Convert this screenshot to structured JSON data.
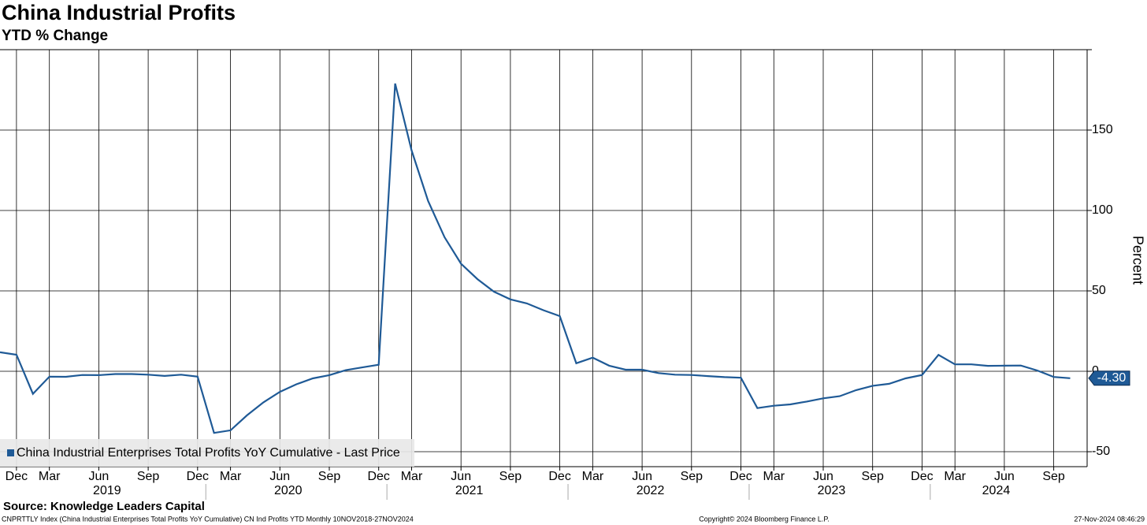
{
  "chart_data": {
    "type": "line",
    "title": "China Industrial Profits",
    "subtitle": "YTD % Change",
    "y_label": "Percent",
    "source": "Source: Knowledge Leaders Capital",
    "footer_left": "CNPRTTLY Index (China Industrial Enterprises Total Profits YoY Cumulative) CN Ind Profits YTD  Monthly 10NOV2018-27NOV2024",
    "footer_center": "Copyright© 2024 Bloomberg Finance L.P.",
    "footer_right": "27-Nov-2024 08:46:29",
    "categories": [
      null,
      "Dec",
      null,
      "Mar",
      null,
      null,
      "Jun",
      null,
      null,
      "Sep",
      null,
      null,
      "Dec",
      null,
      "Mar",
      null,
      null,
      "Jun",
      null,
      null,
      "Sep",
      null,
      null,
      "Dec",
      null,
      "Mar",
      null,
      null,
      "Jun",
      null,
      null,
      "Sep",
      null,
      null,
      "Dec",
      null,
      "Mar",
      null,
      null,
      "Jun",
      null,
      null,
      "Sep",
      null,
      null,
      "Dec",
      null,
      "Mar",
      null,
      null,
      "Jun",
      null,
      null,
      "Sep",
      null,
      null,
      "Dec",
      null,
      "Mar",
      null,
      null,
      "Jun",
      null,
      null,
      "Sep",
      null
    ],
    "year_labels": [
      "2019",
      "2020",
      "2021",
      "2022",
      "2023",
      "2024"
    ],
    "series": [
      {
        "name": "China Industrial Enterprises Total Profits YoY Cumulative - Last Price",
        "color": "#1f5a96",
        "values": [
          11.8,
          10.3,
          -14.0,
          -3.3,
          -3.4,
          -2.3,
          -2.4,
          -1.7,
          -1.7,
          -2.1,
          -2.9,
          -2.1,
          -3.3,
          -38.3,
          -36.7,
          -27.4,
          -19.3,
          -12.8,
          -8.1,
          -4.4,
          -2.4,
          0.7,
          2.4,
          4.1,
          178.9,
          137.3,
          106.0,
          83.4,
          66.9,
          57.3,
          49.5,
          44.7,
          42.2,
          38.0,
          34.3,
          5.0,
          8.5,
          3.5,
          1.0,
          1.0,
          -1.1,
          -2.1,
          -2.3,
          -3.0,
          -3.6,
          -4.0,
          -22.9,
          -21.4,
          -20.6,
          -18.8,
          -16.8,
          -15.5,
          -11.7,
          -9.0,
          -7.8,
          -4.4,
          -2.3,
          10.2,
          4.3,
          4.3,
          3.4,
          3.5,
          3.6,
          0.5,
          -3.5,
          -4.3
        ],
        "value_labels": [
          null,
          null,
          null,
          null,
          null,
          null,
          null,
          null,
          null,
          null,
          null,
          null,
          null,
          null,
          null,
          null,
          null,
          null,
          null,
          null,
          null,
          null,
          null,
          null,
          null,
          null,
          null,
          null,
          null,
          null,
          null,
          null,
          null,
          null,
          null,
          null,
          null,
          null,
          null,
          null,
          null,
          null,
          null,
          null,
          null,
          null,
          null,
          null,
          null,
          null,
          null,
          null,
          null,
          null,
          null,
          null,
          null,
          null,
          null,
          null,
          null,
          null,
          null,
          null,
          null,
          "-4.30"
        ]
      }
    ],
    "ylim": [
      -59.3,
      200
    ],
    "yticks": [
      -50,
      0,
      50,
      100,
      150
    ],
    "grid": true,
    "legend": "bottom-left"
  }
}
